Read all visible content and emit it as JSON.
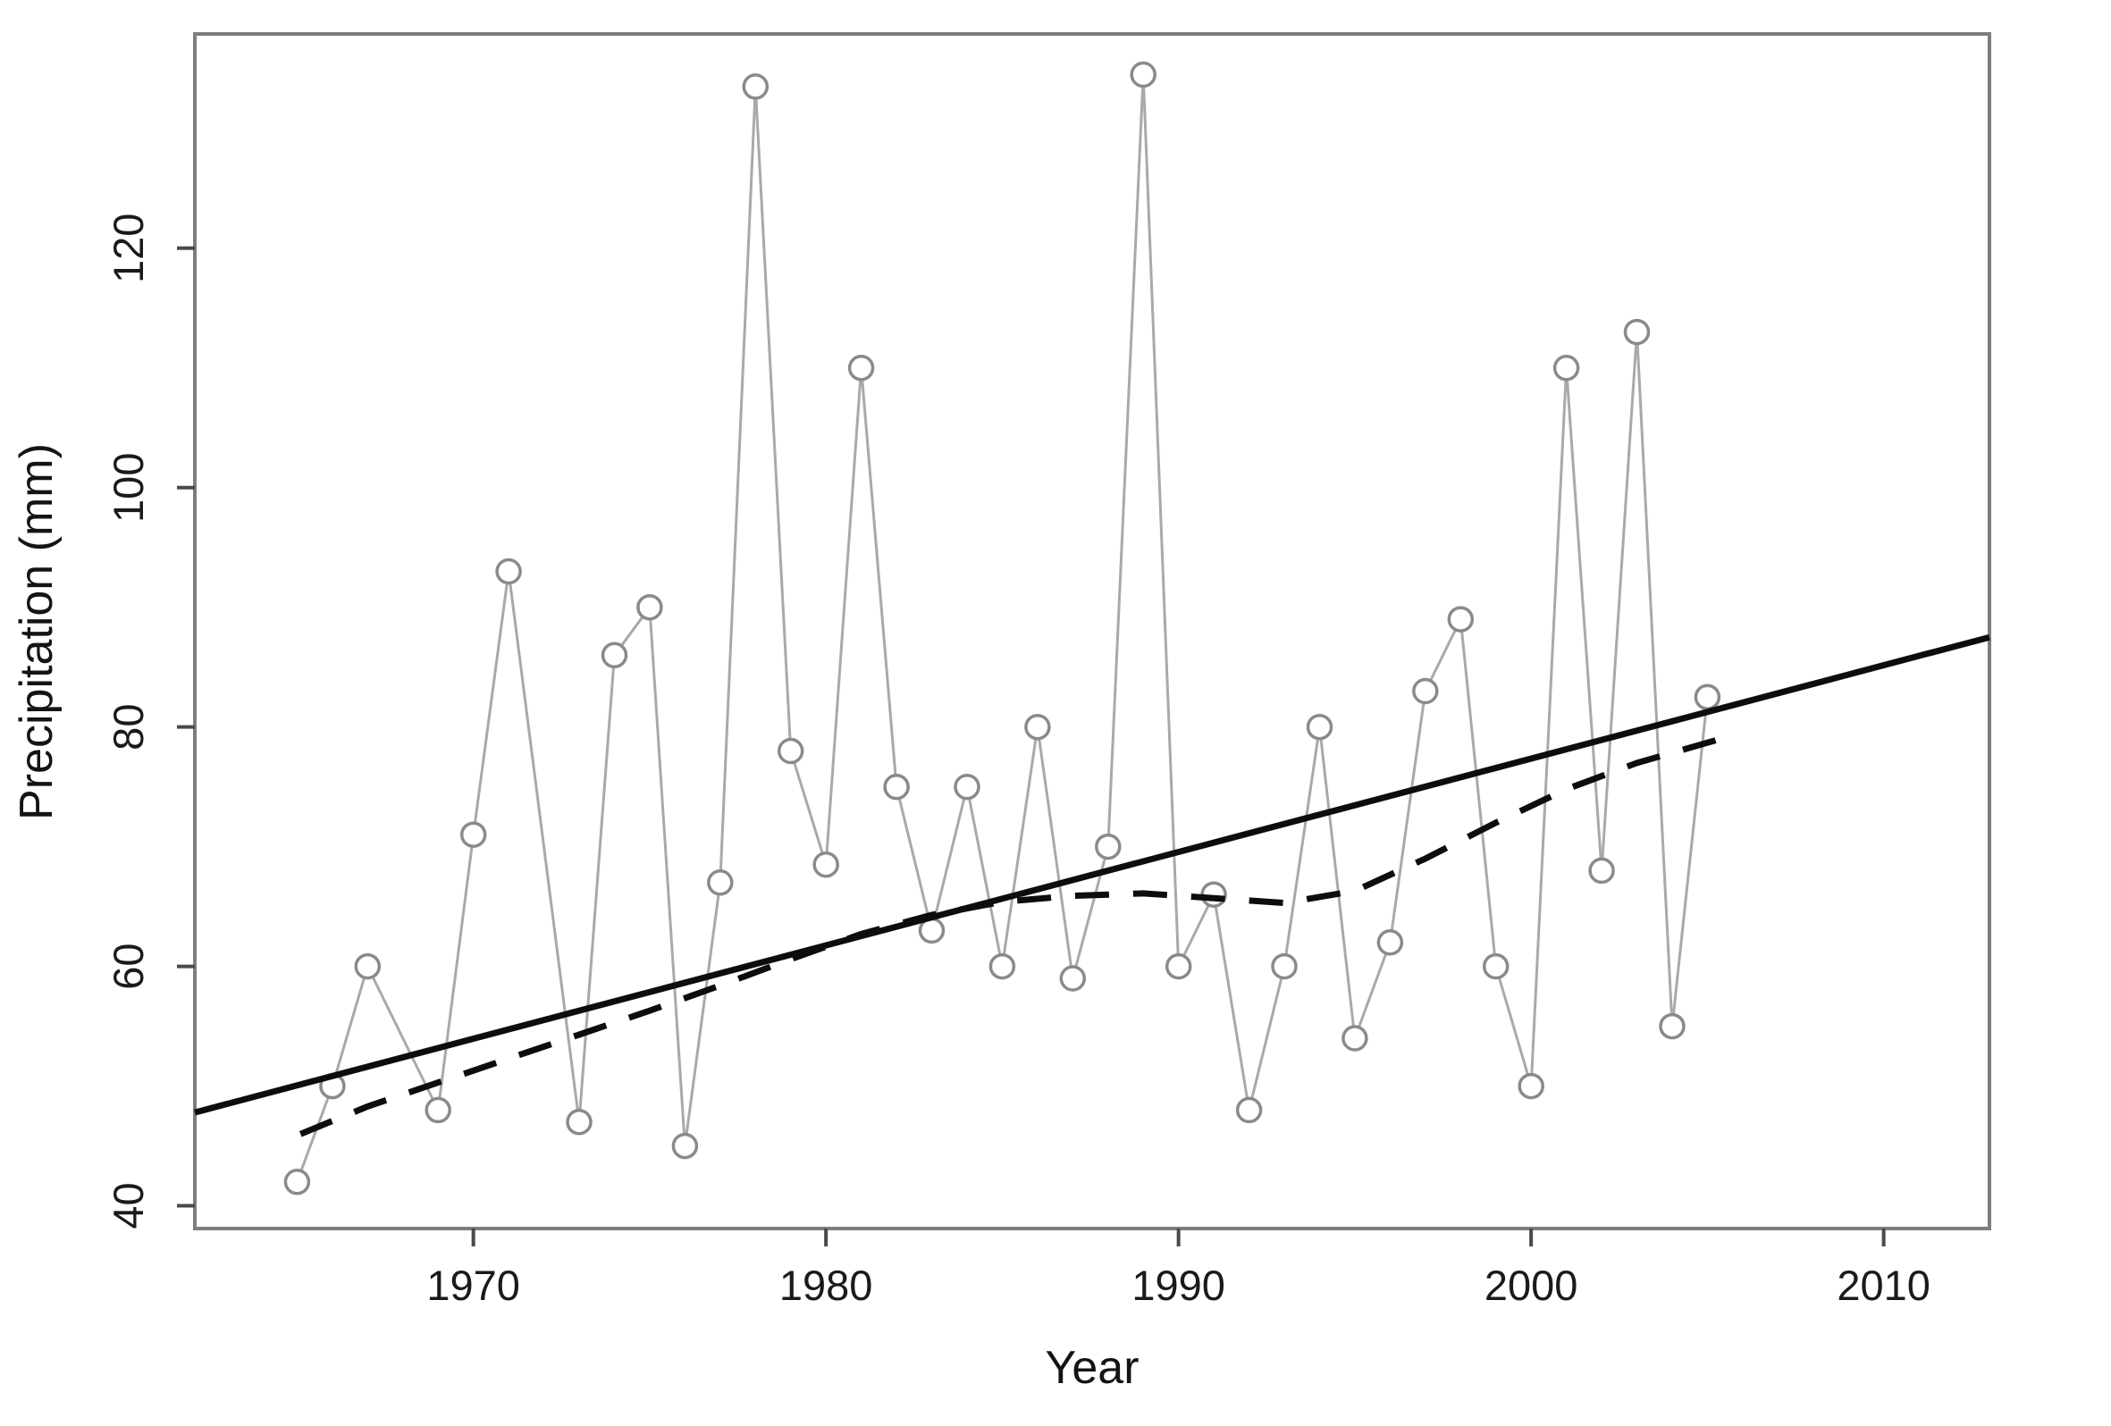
{
  "chart_data": {
    "type": "line",
    "title": "",
    "xlabel": "Year",
    "ylabel": "Precipitation (mm)",
    "grid": false,
    "legend": "none",
    "xlim": [
      1962.1,
      2013.0
    ],
    "ylim": [
      38.1,
      137.9
    ],
    "x_ticks": [
      1970,
      1980,
      1990,
      2000,
      2010
    ],
    "y_ticks": [
      40,
      60,
      80,
      100,
      120
    ],
    "colors": {
      "background": "#ffffff",
      "frame": "#7d7d7d",
      "tick": "#4a4a4a",
      "tick_label": "#1a1a1a",
      "observed_line": "#a9a9a9",
      "marker_stroke": "#8a8a8a",
      "marker_fill": "#ffffff",
      "trend_line": "#0d0d0d",
      "smooth_line": "#0d0d0d"
    },
    "series": [
      {
        "name": "observed-precipitation",
        "render": "markers-line",
        "points": [
          [
            1965,
            42
          ],
          [
            1966,
            50
          ],
          [
            1967,
            60
          ],
          [
            1969,
            48
          ],
          [
            1970,
            71
          ],
          [
            1971,
            93
          ],
          [
            1973,
            47
          ],
          [
            1974,
            86
          ],
          [
            1975,
            90
          ],
          [
            1976,
            45
          ],
          [
            1977,
            67
          ],
          [
            1978,
            133.5
          ],
          [
            1979,
            78
          ],
          [
            1980,
            68.5
          ],
          [
            1981,
            110
          ],
          [
            1982,
            75
          ],
          [
            1983,
            63
          ],
          [
            1984,
            75
          ],
          [
            1985,
            60
          ],
          [
            1986,
            80
          ],
          [
            1987,
            59
          ],
          [
            1988,
            70
          ],
          [
            1989,
            134.5
          ],
          [
            1990,
            60
          ],
          [
            1991,
            66
          ],
          [
            1992,
            48
          ],
          [
            1993,
            60
          ],
          [
            1994,
            80
          ],
          [
            1995,
            54
          ],
          [
            1996,
            62
          ],
          [
            1997,
            83
          ],
          [
            1998,
            89
          ],
          [
            1999,
            60
          ],
          [
            2000,
            50
          ],
          [
            2001,
            110
          ],
          [
            2002,
            68
          ],
          [
            2003,
            113
          ],
          [
            2004,
            55
          ],
          [
            2005,
            82.5
          ]
        ]
      },
      {
        "name": "linear-trend",
        "render": "line",
        "points": [
          [
            1962.1,
            47.8
          ],
          [
            2013.0,
            87.5
          ]
        ]
      },
      {
        "name": "loess-smooth",
        "render": "dashed-line",
        "points": [
          [
            1965.1,
            46.0
          ],
          [
            1967,
            48.3
          ],
          [
            1969,
            50.3
          ],
          [
            1971,
            52.3
          ],
          [
            1973,
            54.3
          ],
          [
            1975,
            56.3
          ],
          [
            1977,
            58.4
          ],
          [
            1979,
            60.6
          ],
          [
            1981,
            62.7
          ],
          [
            1983,
            64.3
          ],
          [
            1985,
            65.4
          ],
          [
            1987,
            65.9
          ],
          [
            1989,
            66.1
          ],
          [
            1991,
            65.7
          ],
          [
            1993,
            65.3
          ],
          [
            1995,
            66.3
          ],
          [
            1997,
            69.0
          ],
          [
            1999,
            72.0
          ],
          [
            2001,
            74.8
          ],
          [
            2003,
            77.0
          ],
          [
            2005.6,
            79.2
          ]
        ]
      }
    ]
  }
}
